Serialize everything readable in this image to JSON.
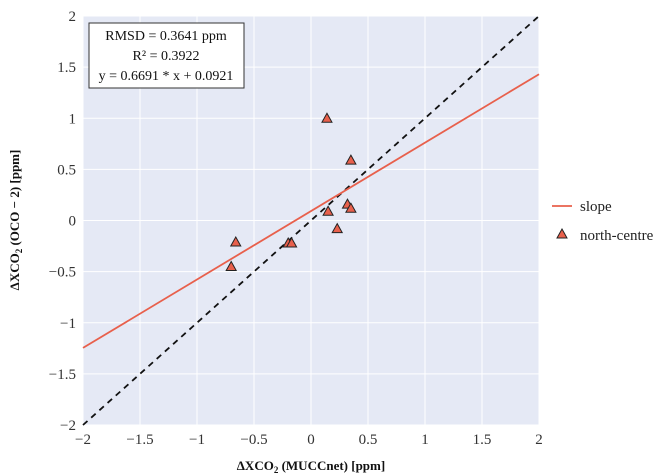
{
  "chart_data": {
    "type": "scatter",
    "xlabel": {
      "main": "ΔXCO",
      "sub": "2",
      "rest": " (MUCCnet) [ppm]"
    },
    "ylabel": {
      "main": "ΔXCO",
      "sub": "2",
      "rest": " (OCO − 2) [ppm]"
    },
    "xlim": [
      -2,
      2
    ],
    "ylim": [
      -2,
      2
    ],
    "xticks": [
      -2,
      -1.5,
      -1,
      -0.5,
      0,
      0.5,
      1,
      1.5,
      2
    ],
    "yticks": [
      -2,
      -1.5,
      -1,
      -0.5,
      0,
      0.5,
      1,
      1.5,
      2
    ],
    "x_tick_labels": [
      "−2",
      "−1.5",
      "−1",
      "−0.5",
      "0",
      "0.5",
      "1",
      "1.5",
      "2"
    ],
    "y_tick_labels": [
      "−2",
      "−1.5",
      "−1",
      "−0.5",
      "0",
      "0.5",
      "1",
      "1.5",
      "2"
    ],
    "grid": true,
    "background": "#e5e9f5",
    "stats": {
      "rmsd": "RMSD = 0.3641 ppm",
      "r2": "R² = 0.3922",
      "equation": "y = 0.6691 * x + 0.0921"
    },
    "fit_line": {
      "name": "slope",
      "slope": 0.6691,
      "intercept": 0.0921,
      "color": "#e8604c"
    },
    "identity_line": {
      "style": "dashed",
      "color": "#111111"
    },
    "series": [
      {
        "name": "north-centre",
        "marker": "triangle-up",
        "color": "#e8604c",
        "x": [
          -0.7,
          -0.66,
          -0.2,
          -0.17,
          0.14,
          0.15,
          0.23,
          0.32,
          0.35,
          0.35
        ],
        "y": [
          -0.45,
          -0.21,
          -0.22,
          -0.22,
          1.0,
          0.09,
          -0.08,
          0.16,
          0.12,
          0.59
        ]
      }
    ],
    "legend": {
      "placement": "right"
    }
  }
}
